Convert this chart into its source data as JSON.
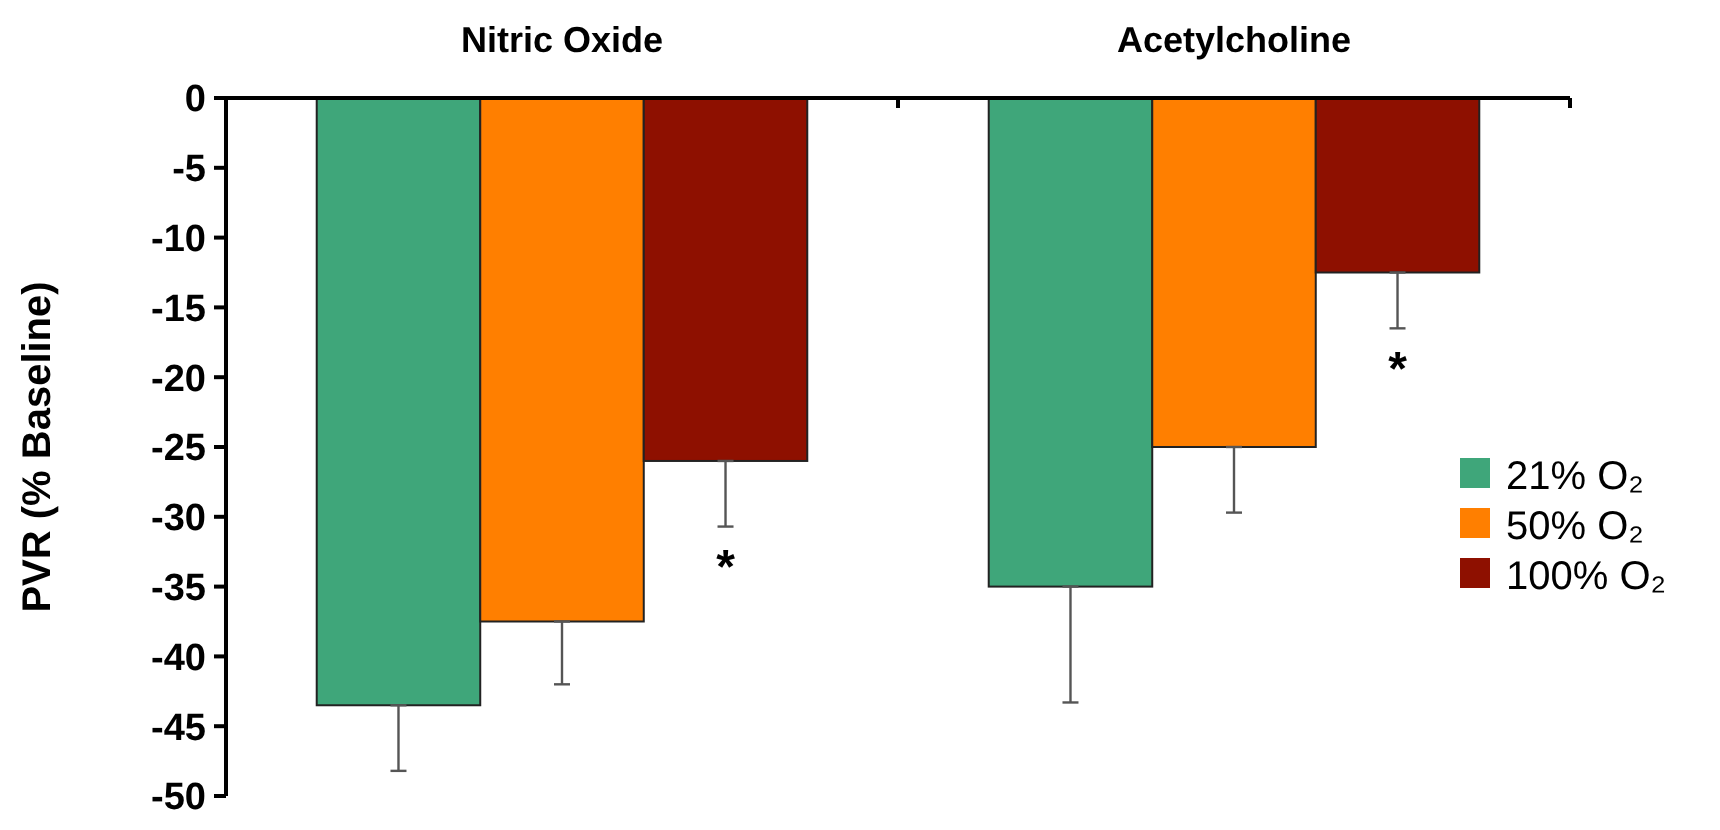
{
  "chart_data": {
    "type": "bar",
    "ylabel": "PVR (% Baseline)",
    "categories": [
      "Nitric Oxide",
      "Acetylcholine"
    ],
    "series": [
      {
        "name": "21% O₂",
        "color": "#3fa67a",
        "values": [
          -43.5,
          -35
        ],
        "errors": [
          [
            -48.2,
            -43.5
          ],
          [
            -43.3,
            -35
          ]
        ]
      },
      {
        "name": "50% O₂",
        "color": "#ff7f00",
        "values": [
          -37.5,
          -25
        ],
        "errors": [
          [
            -42,
            -37.5
          ],
          [
            -29.7,
            -25
          ]
        ]
      },
      {
        "name": "100% O₂",
        "color": "#8e1000",
        "values": [
          -26,
          -12.5
        ],
        "errors": [
          [
            -30.7,
            -26
          ],
          [
            -16.5,
            -12.5
          ]
        ]
      }
    ],
    "ylim": [
      -50,
      0
    ],
    "yticks": [
      0,
      -5,
      -10,
      -15,
      -20,
      -25,
      -30,
      -35,
      -40,
      -45,
      -50
    ],
    "annotations": [
      "*",
      "*"
    ],
    "legend": "right",
    "grid": false
  }
}
